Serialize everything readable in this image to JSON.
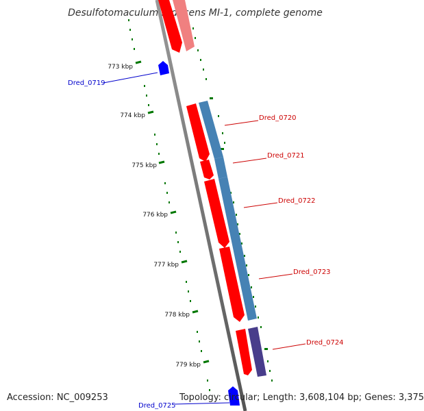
{
  "title": "Desulfotomaculum reducens MI-1, complete genome",
  "footer": {
    "accession": "Accession: NC_009253",
    "topology": "Topology: circular; Length: 3,608,104 bp; Genes: 3,375"
  },
  "ruler_ticks": [
    "773 kbp",
    "774 kbp",
    "775 kbp",
    "776 kbp",
    "777 kbp",
    "778 kbp",
    "779 kbp"
  ],
  "genes": {
    "forward": [
      "Dred_0720",
      "Dred_0721",
      "Dred_0722",
      "Dred_0723",
      "Dred_0724"
    ],
    "reverse": [
      "Dred_0719",
      "Dred_0725"
    ]
  },
  "colors": {
    "cds_forward": "#ff0000",
    "cds_reverse": "#0000ff",
    "cog_blue": "#4682b4",
    "cog_purple": "#483d8b",
    "label_forward": "#cc0000",
    "label_reverse": "#0000cc",
    "ruler": "#007700",
    "backbone": "#888888"
  }
}
